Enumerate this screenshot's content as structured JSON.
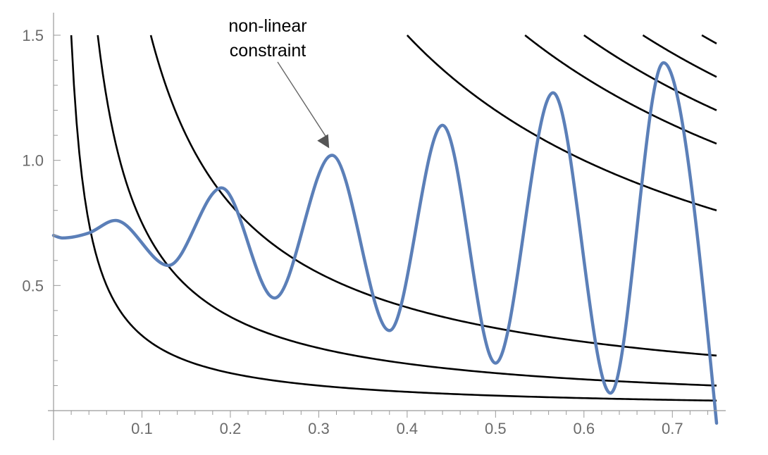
{
  "chart_data": {
    "type": "line",
    "xlim": [
      0,
      0.75
    ],
    "ylim": [
      0,
      1.6
    ],
    "x_ticks": [
      "0.1",
      "0.2",
      "0.3",
      "0.4",
      "0.5",
      "0.6",
      "0.7"
    ],
    "y_ticks": [
      "0.5",
      "1.0",
      "1.5"
    ],
    "grid": false,
    "legend": "none",
    "annotation": {
      "text_lines": [
        "non-linear",
        "constraint"
      ],
      "points_to": [
        0.315,
        1.02
      ]
    },
    "contour_levels": [
      0.03,
      0.075,
      0.165,
      0.6,
      0.8,
      0.9,
      1.0,
      1.1
    ],
    "series": [
      {
        "kind": "contours",
        "color": "#000000",
        "formula": "y = c / x",
        "x": [
          0.02,
          0.04,
          0.06,
          0.08,
          0.1,
          0.15,
          0.2,
          0.25,
          0.3,
          0.35,
          0.4,
          0.45,
          0.5,
          0.55,
          0.6,
          0.65,
          0.7,
          0.75
        ]
      },
      {
        "kind": "constraint",
        "color": "#5b7fb8",
        "x": [
          0.0,
          0.01,
          0.04,
          0.07,
          0.13,
          0.19,
          0.25,
          0.315,
          0.38,
          0.44,
          0.5,
          0.565,
          0.63,
          0.69,
          0.75
        ],
        "y": [
          0.7,
          0.69,
          0.71,
          0.76,
          0.58,
          0.89,
          0.45,
          1.02,
          0.32,
          1.14,
          0.19,
          1.27,
          0.07,
          1.39,
          -0.05
        ]
      }
    ]
  }
}
